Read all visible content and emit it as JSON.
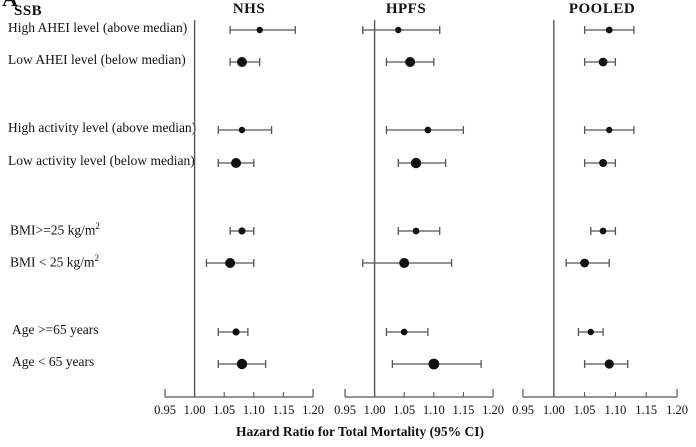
{
  "figure": {
    "panel_letter": "A",
    "row_group_label": "SSB",
    "xlabel": "Hazard  Ratio for Total Mortality (95% CI)"
  },
  "chart_data": {
    "type": "forest",
    "title": "",
    "xlabel": "Hazard  Ratio for Total Mortality (95% CI)",
    "x_range": [
      0.95,
      1.2
    ],
    "x_ticks": [
      0.95,
      1.0,
      1.05,
      1.1,
      1.15,
      1.2
    ],
    "reference_line": 1.0,
    "grid": false,
    "row_group_label": "SSB",
    "rows": [
      {
        "label": "High AHEI  level (above median)",
        "sup": ""
      },
      {
        "label": "Low AHEI  level (below median)",
        "sup": ""
      },
      {
        "label": "High activity level (above median)",
        "sup": ""
      },
      {
        "label": "Low activity level (below median)",
        "sup": ""
      },
      {
        "label": "BMI>=25 kg/m",
        "sup": "2"
      },
      {
        "label": "BMI < 25 kg/m",
        "sup": "2"
      },
      {
        "label": "Age  >=65 years",
        "sup": ""
      },
      {
        "label": "Age  < 65 years",
        "sup": ""
      }
    ],
    "panels": [
      {
        "name": "NHS",
        "points": [
          {
            "hr": 1.11,
            "lo": 1.06,
            "hi": 1.17,
            "size": 3.2
          },
          {
            "hr": 1.08,
            "lo": 1.06,
            "hi": 1.11,
            "size": 5.0
          },
          {
            "hr": 1.08,
            "lo": 1.04,
            "hi": 1.13,
            "size": 3.2
          },
          {
            "hr": 1.07,
            "lo": 1.04,
            "hi": 1.1,
            "size": 5.0
          },
          {
            "hr": 1.08,
            "lo": 1.06,
            "hi": 1.1,
            "size": 3.6
          },
          {
            "hr": 1.06,
            "lo": 1.02,
            "hi": 1.1,
            "size": 5.0
          },
          {
            "hr": 1.07,
            "lo": 1.04,
            "hi": 1.09,
            "size": 3.6
          },
          {
            "hr": 1.08,
            "lo": 1.04,
            "hi": 1.12,
            "size": 5.2
          }
        ]
      },
      {
        "name": "HPFS",
        "points": [
          {
            "hr": 1.04,
            "lo": 0.98,
            "hi": 1.11,
            "size": 3.2
          },
          {
            "hr": 1.06,
            "lo": 1.02,
            "hi": 1.1,
            "size": 5.0
          },
          {
            "hr": 1.09,
            "lo": 1.02,
            "hi": 1.15,
            "size": 3.4
          },
          {
            "hr": 1.07,
            "lo": 1.04,
            "hi": 1.12,
            "size": 5.2
          },
          {
            "hr": 1.07,
            "lo": 1.04,
            "hi": 1.11,
            "size": 3.4
          },
          {
            "hr": 1.05,
            "lo": 0.98,
            "hi": 1.13,
            "size": 5.0
          },
          {
            "hr": 1.05,
            "lo": 1.02,
            "hi": 1.09,
            "size": 3.4
          },
          {
            "hr": 1.1,
            "lo": 1.03,
            "hi": 1.18,
            "size": 5.4
          }
        ]
      },
      {
        "name": "POOLED",
        "points": [
          {
            "hr": 1.09,
            "lo": 1.05,
            "hi": 1.13,
            "size": 3.4
          },
          {
            "hr": 1.08,
            "lo": 1.05,
            "hi": 1.1,
            "size": 4.4
          },
          {
            "hr": 1.09,
            "lo": 1.05,
            "hi": 1.13,
            "size": 3.2
          },
          {
            "hr": 1.08,
            "lo": 1.05,
            "hi": 1.1,
            "size": 4.0
          },
          {
            "hr": 1.08,
            "lo": 1.06,
            "hi": 1.1,
            "size": 3.4
          },
          {
            "hr": 1.05,
            "lo": 1.02,
            "hi": 1.09,
            "size": 4.4
          },
          {
            "hr": 1.06,
            "lo": 1.04,
            "hi": 1.08,
            "size": 3.2
          },
          {
            "hr": 1.09,
            "lo": 1.05,
            "hi": 1.12,
            "size": 4.6
          }
        ]
      }
    ],
    "colors": {
      "marker": "#111111",
      "line": "#555555",
      "axis": "#555555"
    }
  }
}
